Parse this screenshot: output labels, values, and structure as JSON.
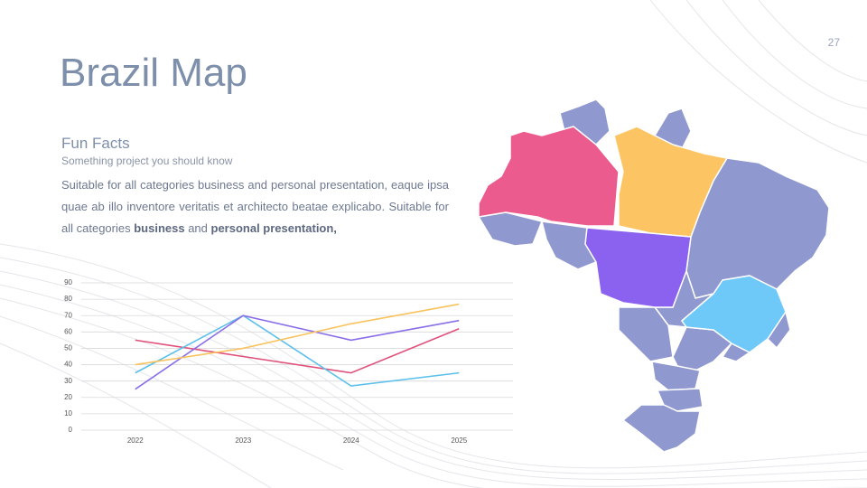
{
  "page_number": "27",
  "title": "Brazil Map",
  "section": {
    "heading": "Fun Facts",
    "subheading": "Something project  you should know",
    "paragraph": [
      "Suitable for all categories business and personal presentation, eaque ipsa quae ab illo inventore veritatis et architecto beatae explicabo. Suitable for all categories ",
      "business",
      " and ",
      "personal presentation,"
    ]
  },
  "chart_data": {
    "type": "line",
    "categories": [
      "2022",
      "2023",
      "2024",
      "2025"
    ],
    "series": [
      {
        "color": "#e0507a",
        "values": [
          55,
          45,
          35,
          62
        ]
      },
      {
        "color": "#5bc0eb",
        "values": [
          35,
          70,
          27,
          35
        ]
      },
      {
        "color": "#8a6ee8",
        "values": [
          25,
          70,
          55,
          67
        ]
      },
      {
        "color": "#f9c35f",
        "values": [
          40,
          50,
          65,
          77
        ]
      }
    ],
    "ylim": [
      0,
      90
    ],
    "yticks": [
      0,
      10,
      20,
      30,
      40,
      50,
      60,
      70,
      80,
      90
    ],
    "grid": true
  }
}
